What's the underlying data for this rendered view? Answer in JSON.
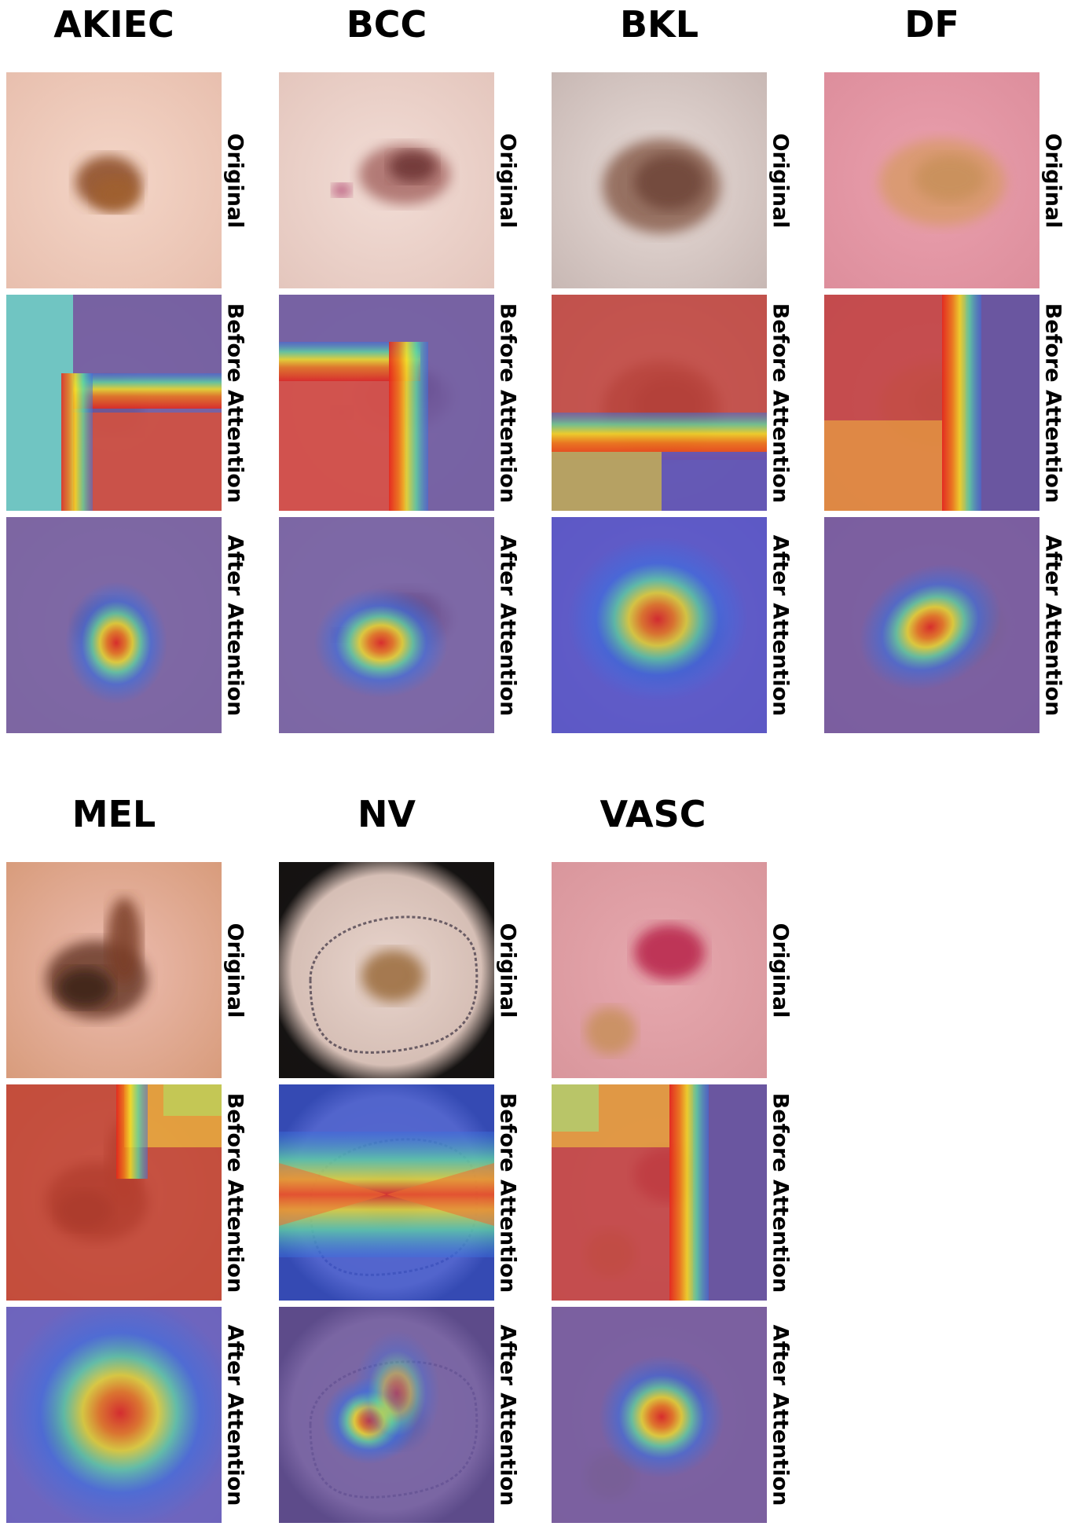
{
  "row_labels": {
    "original": "Original",
    "before": "Before Attention",
    "after": "After Attention"
  },
  "classes": [
    {
      "id": "akiec",
      "name": "AKIEC"
    },
    {
      "id": "bcc",
      "name": "BCC"
    },
    {
      "id": "bkl",
      "name": "BKL"
    },
    {
      "id": "df",
      "name": "DF"
    },
    {
      "id": "mel",
      "name": "MEL"
    },
    {
      "id": "nv",
      "name": "NV"
    },
    {
      "id": "vasc",
      "name": "VASC"
    }
  ],
  "colors": {
    "heat_background": "#6a56a0",
    "heat_low": "#3d5ad8",
    "heat_high": "#e02020"
  }
}
